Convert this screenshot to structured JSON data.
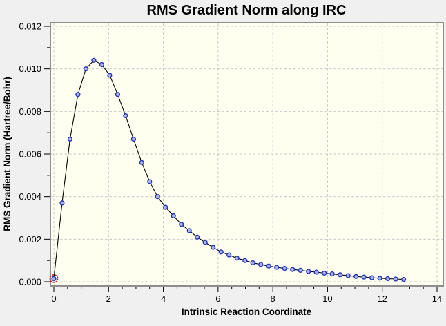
{
  "figure": {
    "background_color": "#f0f0f0",
    "plot_background_color": "#fffff0",
    "frame_color": "#8e8e8e",
    "grid_color": "#c9c9c9",
    "tick_color": "#000000",
    "text_color": "#000000"
  },
  "chart_data": {
    "type": "line",
    "title": "RMS Gradient Norm along IRC",
    "xlabel": "Intrinsic Reaction Coordinate",
    "ylabel": "RMS Gradient Norm (Hartree/Bohr)",
    "xlim": [
      0,
      14
    ],
    "ylim": [
      0,
      0.012
    ],
    "x_major_ticks": [
      0,
      2,
      4,
      6,
      8,
      10,
      12,
      14
    ],
    "x_tick_labels": [
      "0",
      "2",
      "4",
      "6",
      "8",
      "10",
      "12",
      "14"
    ],
    "x_minor_tick_step": 0.5,
    "y_major_ticks": [
      0,
      0.002,
      0.004,
      0.006,
      0.008,
      0.01,
      0.012
    ],
    "y_tick_labels": [
      "0.000",
      "0.002",
      "0.004",
      "0.006",
      "0.008",
      "0.010",
      "0.012"
    ],
    "y_minor_tick_step": 0.001,
    "grid": {
      "style": "dashed",
      "on_major_ticks": true
    },
    "legend": {
      "visible": false
    },
    "series": [
      {
        "name": "RMS Gradient Norm",
        "line_color": "#000000",
        "marker": "circle",
        "marker_fill": "#a9b4f0",
        "marker_stroke": "#2233bb",
        "x": [
          0.0,
          0.3,
          0.59,
          0.88,
          1.17,
          1.46,
          1.75,
          2.04,
          2.33,
          2.62,
          2.91,
          3.21,
          3.5,
          3.79,
          4.08,
          4.37,
          4.66,
          4.95,
          5.24,
          5.53,
          5.82,
          6.11,
          6.4,
          6.69,
          6.98,
          7.27,
          7.56,
          7.85,
          8.14,
          8.43,
          8.72,
          9.01,
          9.3,
          9.59,
          9.88,
          10.17,
          10.46,
          10.75,
          11.04,
          11.33,
          11.62,
          11.91,
          12.2,
          12.49,
          12.78
        ],
        "y": [
          0.00015,
          0.0037,
          0.0067,
          0.0088,
          0.01,
          0.0104,
          0.0102,
          0.0097,
          0.0088,
          0.0078,
          0.0067,
          0.0056,
          0.0047,
          0.004,
          0.0035,
          0.0031,
          0.0027,
          0.0024,
          0.0021,
          0.00185,
          0.00162,
          0.0014,
          0.00126,
          0.00111,
          0.001,
          0.00089,
          0.00081,
          0.00074,
          0.00068,
          0.00063,
          0.00058,
          0.00054,
          0.00049,
          0.00045,
          0.00041,
          0.00037,
          0.00033,
          0.00029,
          0.00025,
          0.00022,
          0.00019,
          0.00017,
          0.00015,
          0.00013,
          0.00011
        ]
      }
    ],
    "highlighted_point": {
      "series": 0,
      "index": 0,
      "ring_color": "#dd2222"
    }
  }
}
